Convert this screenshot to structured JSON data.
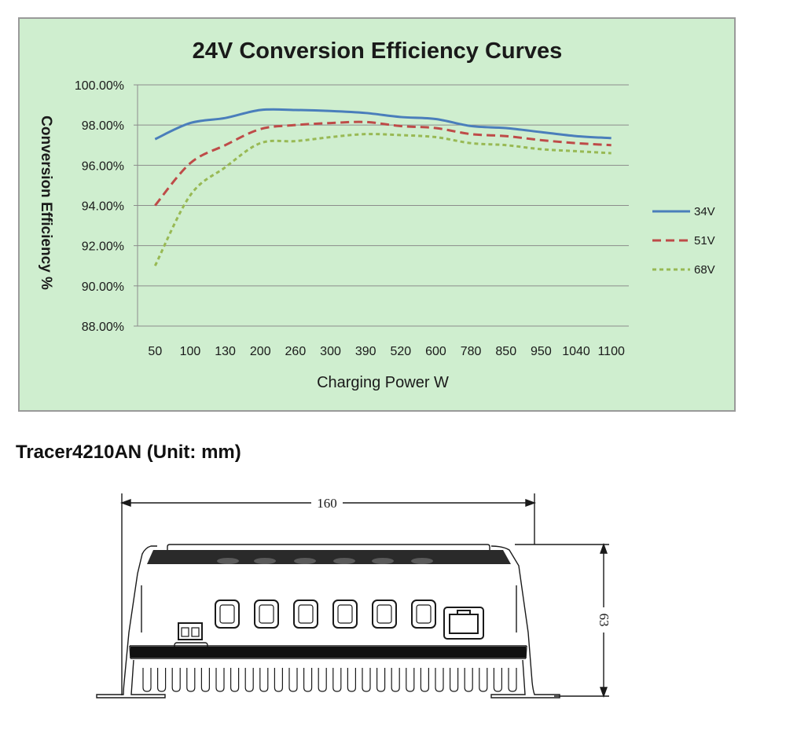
{
  "chart_data": {
    "type": "line",
    "title": "24V Conversion Efficiency Curves",
    "xlabel": "Charging Power W",
    "ylabel": "Conversion Efficiency %",
    "categories": [
      "50",
      "100",
      "130",
      "200",
      "260",
      "300",
      "390",
      "520",
      "600",
      "780",
      "850",
      "950",
      "1040",
      "1100"
    ],
    "ylim": [
      88,
      100
    ],
    "yticks": [
      88,
      90,
      92,
      94,
      96,
      98,
      100
    ],
    "ytick_labels": [
      "88.00%",
      "90.00%",
      "92.00%",
      "94.00%",
      "96.00%",
      "98.00%",
      "100.00%"
    ],
    "grid": true,
    "legend_position": "right",
    "series": [
      {
        "name": "34V",
        "style": "solid",
        "color": "#4a7ebb",
        "values": [
          97.3,
          98.1,
          98.35,
          98.75,
          98.75,
          98.7,
          98.6,
          98.4,
          98.3,
          97.95,
          97.85,
          97.65,
          97.45,
          97.35
        ]
      },
      {
        "name": "51V",
        "style": "dashed",
        "color": "#be4b48",
        "values": [
          94.0,
          96.1,
          97.0,
          97.8,
          98.0,
          98.1,
          98.15,
          97.95,
          97.85,
          97.55,
          97.45,
          97.25,
          97.1,
          97.0
        ]
      },
      {
        "name": "68V",
        "style": "dotted",
        "color": "#98b954",
        "values": [
          91.0,
          94.5,
          95.9,
          97.1,
          97.2,
          97.4,
          97.55,
          97.5,
          97.4,
          97.1,
          97.0,
          96.8,
          96.7,
          96.6
        ]
      }
    ]
  },
  "drawing": {
    "heading": "Tracer4210AN (Unit: mm)",
    "width_label": "160",
    "height_label": "63"
  },
  "colors": {
    "chart_background": "#cfeecf",
    "gridline": "#8c8c8c",
    "drawing_line": "#1a1a1a"
  }
}
